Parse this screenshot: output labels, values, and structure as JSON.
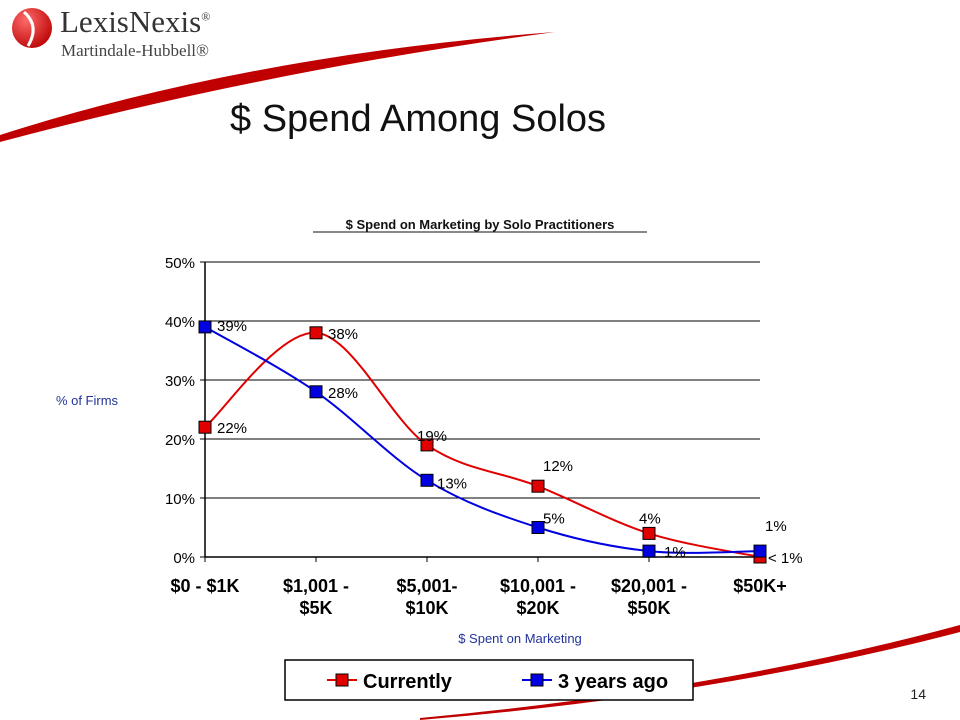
{
  "logo": {
    "brand": "LexisNexis",
    "registered_mark": "®",
    "sub": "Martindale-Hubbell®"
  },
  "slide": {
    "title": "$ Spend Among Solos",
    "page_number": "14"
  },
  "colors": {
    "currently": "#e00000",
    "three_years": "#0000e0",
    "swoosh": "#c00000"
  },
  "chart_data": {
    "type": "line",
    "title": "$ Spend on Marketing by Solo Practitioners",
    "xlabel": "$ Spent on Marketing",
    "ylabel": "% of Firms",
    "categories": [
      [
        "$0 - $1K"
      ],
      [
        "$1,001 -",
        "$5K"
      ],
      [
        "$5,001-",
        "$10K"
      ],
      [
        "$10,001 -",
        "$20K"
      ],
      [
        "$20,001 -",
        "$50K"
      ],
      [
        "$50K+"
      ]
    ],
    "ylim": [
      0,
      50
    ],
    "yticks": [
      "0%",
      "10%",
      "20%",
      "30%",
      "40%",
      "50%"
    ],
    "grid": true,
    "legend_position": "bottom",
    "series": [
      {
        "name": "Currently",
        "values": [
          22,
          38,
          19,
          12,
          4,
          0
        ],
        "labels": [
          "22%",
          "38%",
          "19%",
          "12%",
          "4%",
          "< 1%"
        ]
      },
      {
        "name": "3 years ago",
        "values": [
          39,
          28,
          13,
          5,
          1,
          1
        ],
        "labels": [
          "39%",
          "28%",
          "13%",
          "5%",
          "1%",
          "1%"
        ]
      }
    ]
  }
}
